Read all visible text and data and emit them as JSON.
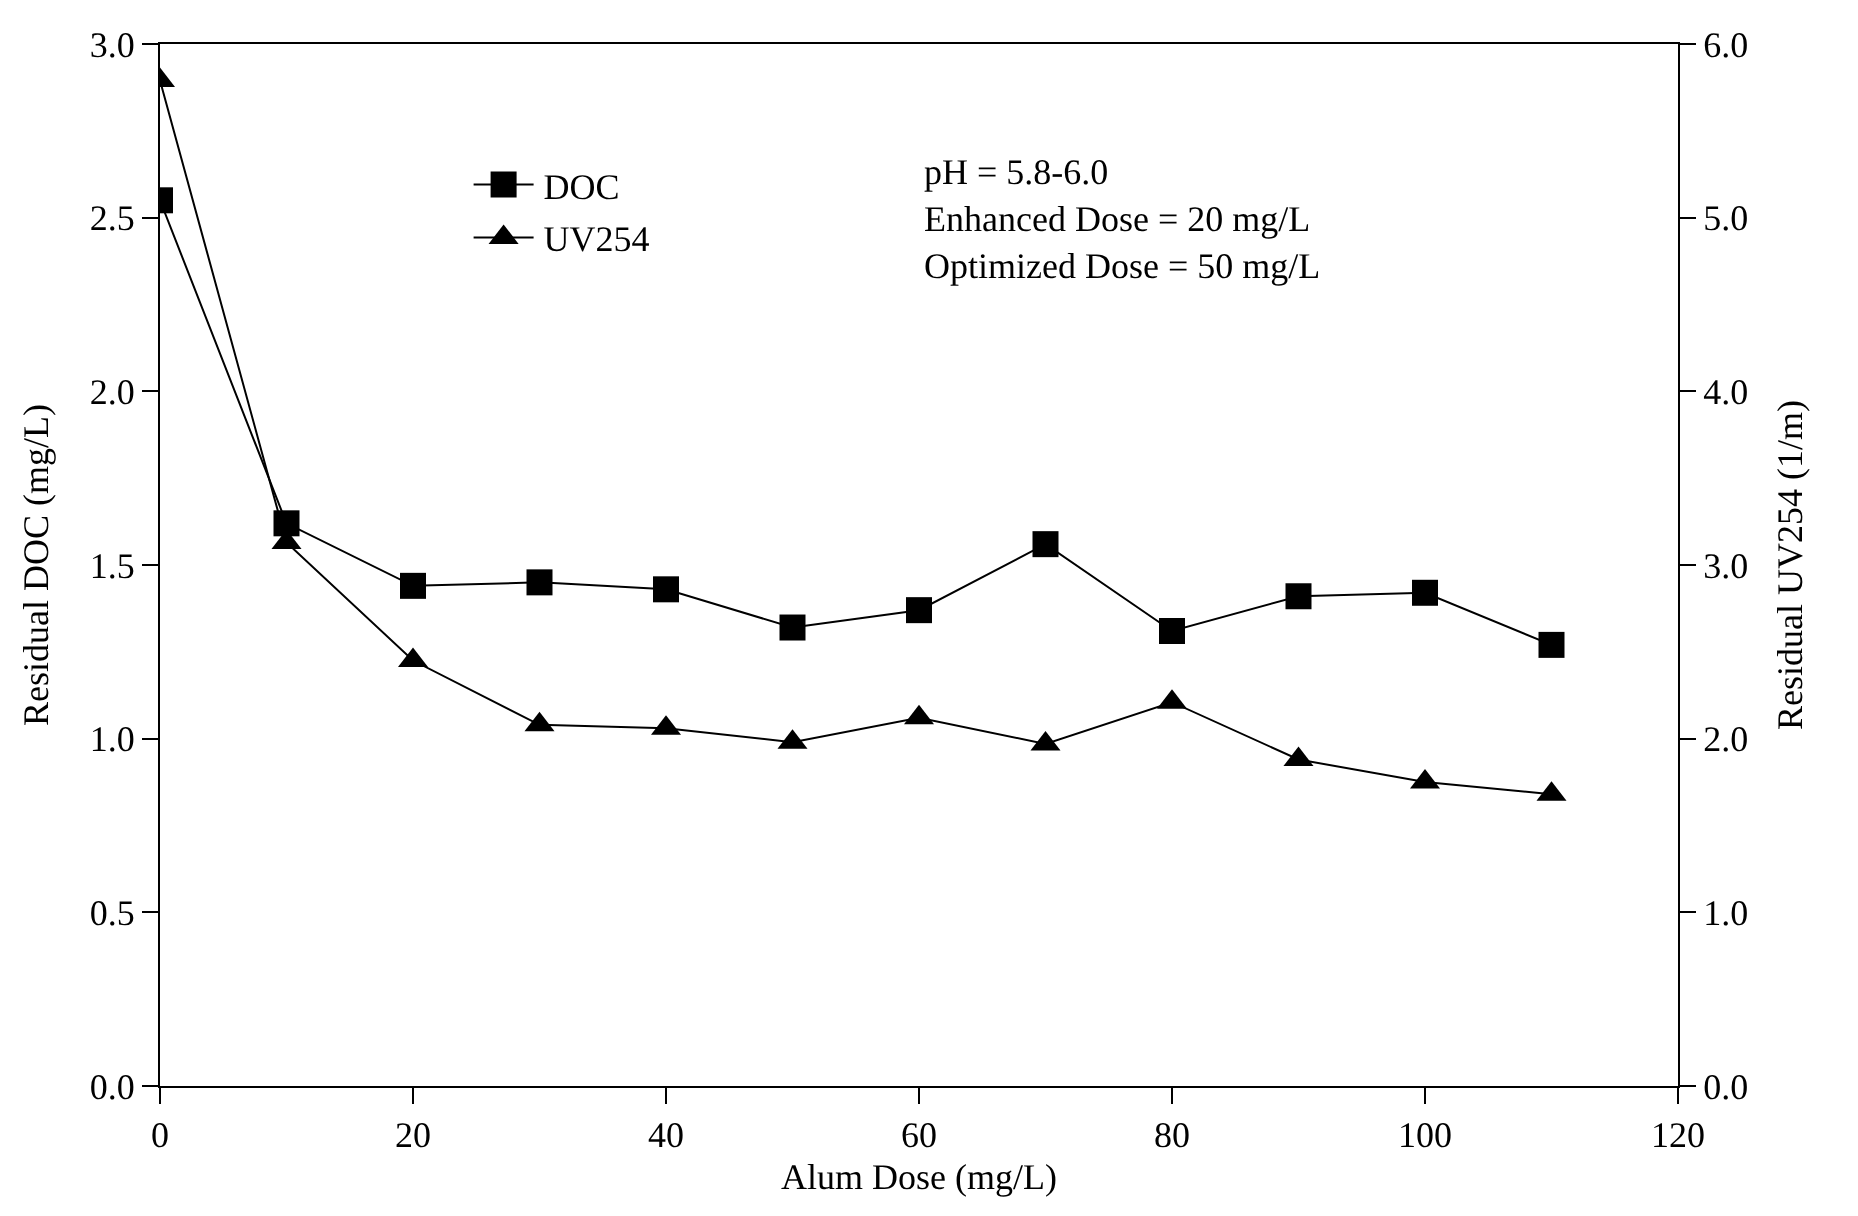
{
  "chart_data": {
    "type": "line",
    "xlabel": "Alum Dose (mg/L)",
    "ylabel": "Residual DOC (mg/L)",
    "y2label": "Residual UV254 (1/m)",
    "x": [
      0,
      10,
      20,
      30,
      40,
      50,
      60,
      70,
      80,
      90,
      100,
      110
    ],
    "series": [
      {
        "name": "DOC",
        "color": "#000000",
        "marker": "square",
        "values": [
          2.55,
          1.62,
          1.44,
          1.45,
          1.43,
          1.32,
          1.37,
          1.56,
          1.31,
          1.41,
          1.42,
          1.27
        ]
      },
      {
        "name": "UV254",
        "color": "#000000",
        "marker": "triangle",
        "axis": "y2",
        "values": [
          5.79,
          3.13,
          2.45,
          2.08,
          2.06,
          1.98,
          2.12,
          1.97,
          2.21,
          1.88,
          1.75,
          1.68
        ]
      }
    ],
    "xlim": [
      0,
      120
    ],
    "xticks": [
      0,
      20,
      40,
      60,
      80,
      100,
      120
    ],
    "ylim": [
      0,
      3.0
    ],
    "yticks": [
      {
        "value": 0,
        "label": "0.0"
      },
      0.5,
      {
        "value": 1,
        "label": "1.0"
      },
      1.5,
      {
        "value": 2,
        "label": "2.0"
      },
      2.5,
      {
        "value": 3,
        "label": "3.0"
      }
    ],
    "y2lim": [
      0,
      6.0
    ],
    "y2ticks": [
      {
        "value": 0,
        "label": "0.0"
      },
      {
        "value": 1,
        "label": "1.0"
      },
      {
        "value": 2,
        "label": "2.0"
      },
      {
        "value": 3,
        "label": "3.0"
      },
      {
        "value": 4,
        "label": "4.0"
      },
      {
        "value": 5,
        "label": "5.0"
      },
      {
        "value": 6,
        "label": "6.0"
      }
    ],
    "annotations": [
      "pH = 5.8-6.0",
      "Enhanced Dose = 20 mg/L",
      "Optimized Dose = 50 mg/L"
    ],
    "legend": "top left",
    "line_style": "solid"
  }
}
